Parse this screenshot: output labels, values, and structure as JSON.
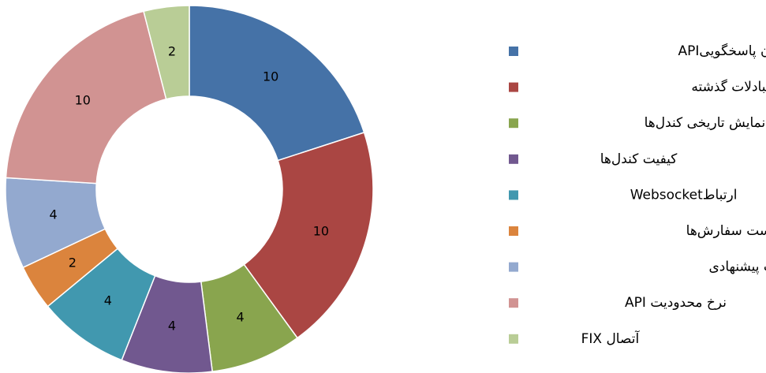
{
  "chart_data": {
    "type": "donut",
    "categories": [
      "میانگین زمان پاسخگوییAPI",
      "جست‌وجوی در مبادلات گذشته",
      "نمایش تاریخی کندل‌ها",
      "کیفیت کندل‌ها",
      "ارتباطWebsocket",
      "ارائه شفاف لیست سفارش‌ها",
      "بیشترین لول سفارشات پیشنهادی",
      "نرخ محدودیت API",
      "آتصال FIX"
    ],
    "values": [
      10,
      10,
      4,
      4,
      4,
      2,
      4,
      10,
      2
    ],
    "colors": [
      "#4572a7",
      "#aa4643",
      "#89a54e",
      "#71588f",
      "#4198af",
      "#db843d",
      "#93a9cf",
      "#d19392",
      "#b9cd96"
    ],
    "legend": "right"
  }
}
